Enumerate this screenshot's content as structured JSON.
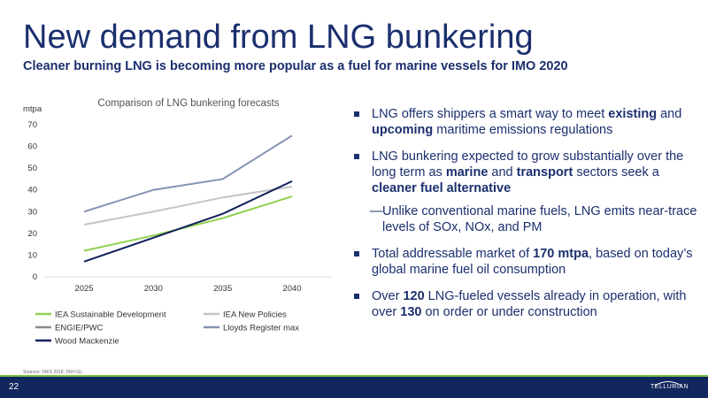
{
  "slide": {
    "title": "New demand from LNG bunkering",
    "subtitle": "Cleaner burning LNG is becoming more popular as a fuel for marine vessels for IMO 2020",
    "sources": "Sources: OIES 2018, DNV-GL.",
    "page_number": "22",
    "logo_text": "TELLURIAN"
  },
  "colors": {
    "navy": "#1b2f6e",
    "footer": "#12275d",
    "accent_green": "#7ac143"
  },
  "bullets": {
    "b1": {
      "pre": "LNG offers shippers a smart way to meet ",
      "bold1": "existing",
      "mid": " and ",
      "bold2": "upcoming",
      "post": " maritime emissions regulations"
    },
    "b2": {
      "pre": "LNG bunkering expected to grow substantially over the long term as ",
      "bold1": "marine",
      "mid": " and ",
      "bold2": "transport",
      "mid2": " sectors seek a ",
      "bold3": "cleaner fuel alternative"
    },
    "sub": {
      "dash": "—",
      "text": "Unlike conventional marine fuels, LNG emits near-trace levels of SOx, NOx, and PM"
    },
    "b3": {
      "pre": "Total addressable market of ",
      "bold1": "170 mtpa",
      "post": ", based on today’s global marine fuel oil consumption"
    },
    "b4": {
      "pre": "Over ",
      "bold1": "120",
      "mid": " LNG-fueled vessels already in operation, with over ",
      "bold2": "130",
      "post": " on order or under construction"
    }
  },
  "chart_data": {
    "type": "line",
    "title": "Comparison of LNG bunkering forecasts",
    "ylabel": "mtpa",
    "xlabel": "",
    "x": [
      "2025",
      "2030",
      "2035",
      "2040"
    ],
    "ylim": [
      0,
      70
    ],
    "yticks": [
      0,
      10,
      20,
      30,
      40,
      50,
      60,
      70
    ],
    "grid": false,
    "legend_position": "bottom",
    "series": [
      {
        "name": "IEA Sustainable Development",
        "color": "#8fd14f",
        "values": [
          12,
          19,
          27,
          37
        ]
      },
      {
        "name": "IEA New Policies",
        "color": "#c4c4c4",
        "values": [
          24,
          30,
          36.5,
          41.5
        ]
      },
      {
        "name": "ENGIE/PWC",
        "color": "#8c8c8c",
        "values": [
          null,
          null,
          null,
          null
        ]
      },
      {
        "name": "Lloyds Register max",
        "color": "#8593b3",
        "values": [
          30,
          40,
          45,
          65
        ]
      },
      {
        "name": "Wood Mackenzie",
        "color": "#0f1f5c",
        "values": [
          7,
          18,
          29,
          44
        ]
      }
    ]
  }
}
